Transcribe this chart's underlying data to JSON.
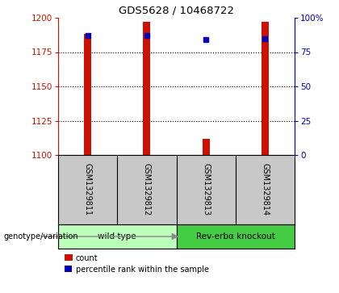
{
  "title": "GDS5628 / 10468722",
  "samples": [
    "GSM1329811",
    "GSM1329812",
    "GSM1329813",
    "GSM1329814"
  ],
  "count_values": [
    1188,
    1197,
    1112,
    1197
  ],
  "percentile_values": [
    87,
    87,
    84,
    85
  ],
  "ylim_left": [
    1100,
    1200
  ],
  "ylim_right": [
    0,
    100
  ],
  "yticks_left": [
    1100,
    1125,
    1150,
    1175,
    1200
  ],
  "yticks_right": [
    0,
    25,
    50,
    75,
    100
  ],
  "bar_color": "#cc1100",
  "dot_color": "#0000bb",
  "bar_width": 0.12,
  "groups": [
    {
      "label": "wild type",
      "samples": [
        0,
        1
      ],
      "color": "#bbffbb"
    },
    {
      "label": "Rev-erbα knockout",
      "samples": [
        2,
        3
      ],
      "color": "#44cc44"
    }
  ],
  "genotype_label": "genotype/variation",
  "legend_count": "count",
  "legend_percentile": "percentile rank within the sample",
  "background_color": "#ffffff",
  "plot_bg_color": "#ffffff",
  "sample_area_color": "#c8c8c8"
}
